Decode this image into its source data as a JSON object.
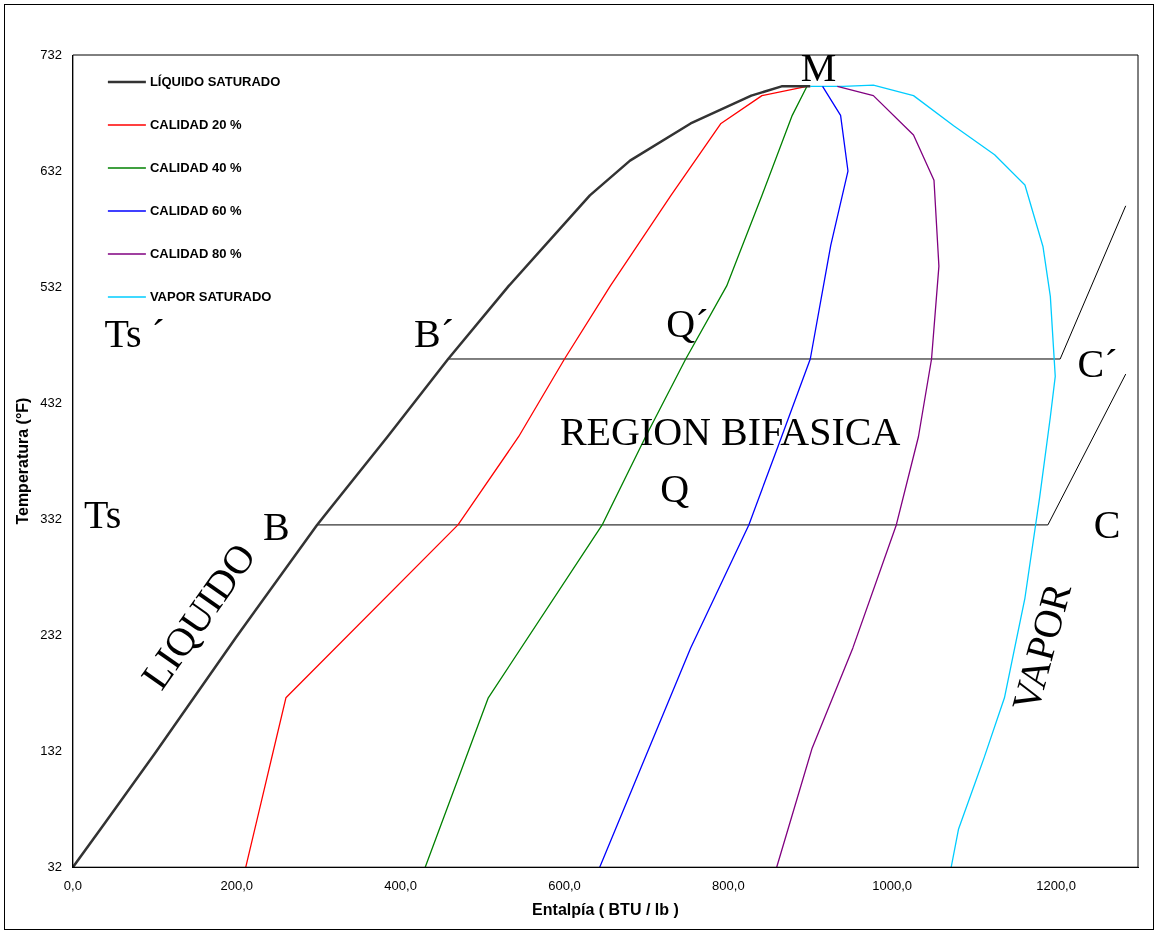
{
  "chart_data": {
    "type": "line",
    "xlabel": "Entalpía ( BTU / lb )",
    "ylabel": "Temperatura (°F)",
    "xlim": [
      0,
      1300
    ],
    "xticks": [
      {
        "value": 0,
        "label": "0,0"
      },
      {
        "value": 200,
        "label": "200,0"
      },
      {
        "value": 400,
        "label": "400,0"
      },
      {
        "value": 600,
        "label": "600,0"
      },
      {
        "value": 800,
        "label": "800,0"
      },
      {
        "value": 1000,
        "label": "1000,0"
      },
      {
        "value": 1200,
        "label": "1200,0"
      }
    ],
    "ylim": [
      32,
      732
    ],
    "yticks": [
      32,
      132,
      232,
      332,
      432,
      532,
      632,
      732
    ],
    "grid": false,
    "legend": "top left",
    "marker": "none",
    "line_style": "solid",
    "series": [
      {
        "name": "LÍQUIDO SATURADO",
        "color": "#333333",
        "x": [
          0,
          38,
          100,
          199,
          298,
          384,
          458,
          532,
          631,
          680,
          754,
          828,
          865,
          900
        ],
        "values": [
          32,
          69,
          130,
          230,
          327,
          403,
          470,
          533,
          611,
          641,
          673,
          697,
          705,
          705
        ]
      },
      {
        "name": "CALIDAD 20 %",
        "color": "#ff0000",
        "x": [
          211,
          260,
          470,
          544,
          600,
          656,
          730,
          791,
          841,
          896
        ],
        "values": [
          32,
          178,
          327,
          403,
          470,
          533,
          611,
          673,
          697,
          705
        ]
      },
      {
        "name": "CALIDAD 40 %",
        "color": "#008000",
        "x": [
          430,
          507,
          646,
          699,
          748,
          798,
          841,
          878,
          896
        ],
        "values": [
          32,
          178,
          327,
          403,
          470,
          533,
          611,
          680,
          705
        ]
      },
      {
        "name": "CALIDAD 60 %",
        "color": "#0000ff",
        "x": [
          643,
          754,
          825,
          865,
          900,
          925,
          946,
          937,
          915
        ],
        "values": [
          32,
          221,
          327,
          403,
          470,
          568,
          632,
          680,
          705
        ]
      },
      {
        "name": "CALIDAD 80 %",
        "color": "#800080",
        "x": [
          859,
          902,
          952,
          1005,
          1032,
          1048,
          1057,
          1051,
          1026,
          977,
          933
        ],
        "values": [
          32,
          134,
          221,
          327,
          403,
          470,
          550,
          624,
          663,
          697,
          705
        ]
      },
      {
        "name": "VAPOR SATURADO",
        "color": "#00ccff",
        "x": [
          1072,
          1081,
          1112,
          1137,
          1162,
          1180,
          1193,
          1199,
          1193,
          1184,
          1162,
          1125,
          1075,
          1026,
          977,
          940,
          900
        ],
        "values": [
          32,
          65,
          126,
          178,
          264,
          351,
          420,
          455,
          524,
          567,
          620,
          646,
          671,
          697,
          706,
          705,
          705
        ]
      },
      {
        "color": "#000000",
        "x": [
          298,
          1190,
          1285
        ],
        "values": [
          327,
          327,
          457
        ]
      },
      {
        "color": "#000000",
        "x": [
          458,
          1205,
          1285
        ],
        "values": [
          470,
          470,
          602
        ]
      }
    ],
    "annotations": [
      "M",
      "Ts ´",
      "Ts",
      "B´",
      "B",
      "Q´",
      "Q",
      "C´",
      "C",
      "REGION BIFASICA",
      "LIQUIDO",
      "VAPOR"
    ]
  }
}
